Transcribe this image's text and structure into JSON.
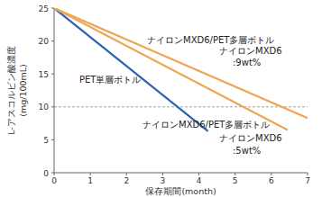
{
  "chart_data": {
    "type": "line",
    "xlabel": "保存期間(month)",
    "ylabel": "L-アスコルビン酸濃度\n(mg/100mL)",
    "xlim": [
      0,
      7
    ],
    "xticks": [
      0,
      1,
      2,
      3,
      4,
      5,
      6,
      7
    ],
    "ylim": [
      0,
      25
    ],
    "yticks": [
      0,
      5,
      10,
      15,
      20,
      25
    ],
    "grid": false,
    "threshold": 10,
    "series": [
      {
        "name": "PET単層ボトル",
        "color": "#2e63b0",
        "x": [
          0,
          4.25
        ],
        "values": [
          25,
          6.3
        ]
      },
      {
        "name": "ナイロンMXD6/PET多層ボトル\nナイロンMXD6\n:9wt%",
        "color": "#f0a555",
        "x": [
          0,
          7
        ],
        "values": [
          25,
          8.3
        ]
      },
      {
        "name": "ナイロンMXD6/PET多層ボトル\nナイロンMXD6\n:5wt%",
        "color": "#f0a555",
        "x": [
          0,
          6.45
        ],
        "values": [
          25,
          6.5
        ]
      }
    ]
  }
}
